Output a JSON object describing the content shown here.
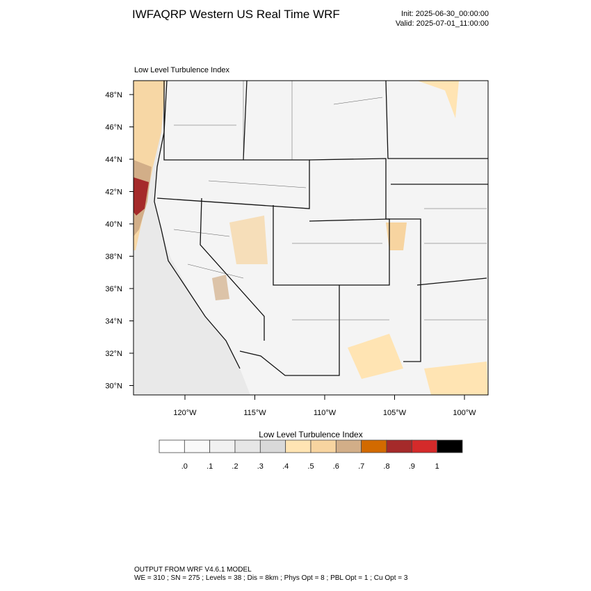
{
  "header": {
    "title": "IWFAQRP Western US Real Time WRF",
    "init": "Init: 2025-06-30_00:00:00",
    "valid": "Valid: 2025-07-01_11:00:00"
  },
  "map": {
    "title": "Low Level Turbulence Index",
    "lat_labels": [
      "48°N",
      "46°N",
      "44°N",
      "42°N",
      "40°N",
      "38°N",
      "36°N",
      "34°N",
      "32°N",
      "30°N"
    ],
    "lon_labels": [
      "120°W",
      "115°W",
      "110°W",
      "105°W",
      "100°W"
    ]
  },
  "colorbar": {
    "title": "Low Level Turbulence Index",
    "colors": [
      "#ffffff",
      "#f9f9f9",
      "#f1f1f1",
      "#e6e6e6",
      "#d9d9d9",
      "#ffe4b3",
      "#f7d4a0",
      "#d2ae88",
      "#d26a00",
      "#a52a2a",
      "#d42a2a",
      "#000000"
    ],
    "labels": [
      ".0",
      ".1",
      ".2",
      ".3",
      ".4",
      ".5",
      ".6",
      ".7",
      ".8",
      ".9",
      "1"
    ]
  },
  "footer": {
    "line1": "OUTPUT FROM WRF V4.6.1 MODEL",
    "line2": "WE = 310 ; SN = 275 ; Levels = 38 ; Dis = 8km ; Phys Opt = 8 ; PBL Opt = 1 ; Cu Opt = 3"
  }
}
